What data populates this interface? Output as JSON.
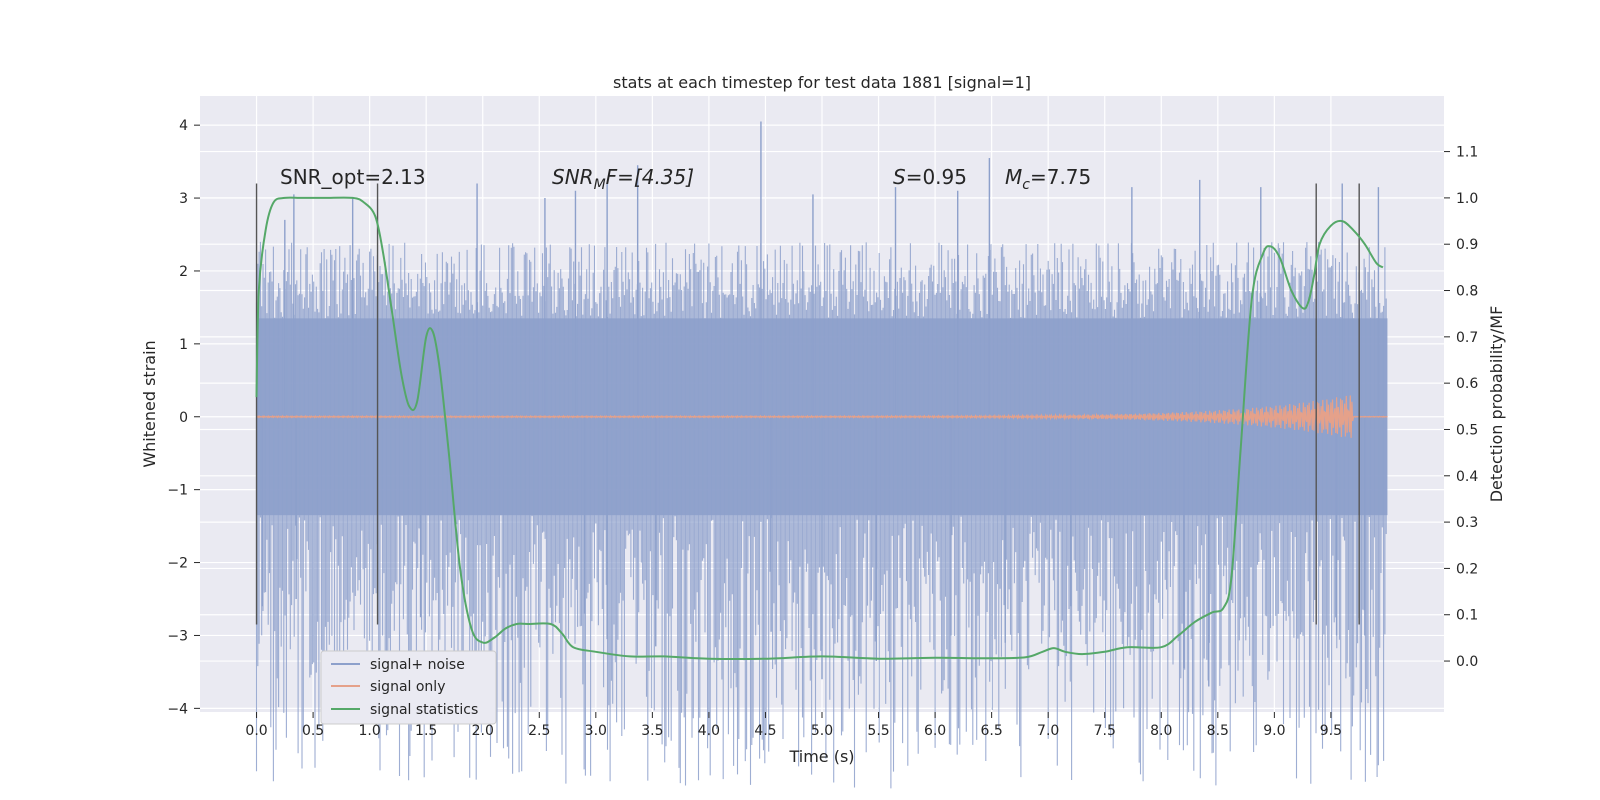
{
  "chart_data": {
    "type": "line",
    "title": "stats at each timestep for test data 1881 [signal=1]",
    "xlabel": "Time (s)",
    "ylabel": "Whitened strain",
    "y2label": "Detection probability/MF",
    "xlim": [
      -0.5,
      10.5
    ],
    "ylim": [
      -4.05,
      4.4
    ],
    "y2lim": [
      -0.11,
      1.22
    ],
    "xticks": [
      0.0,
      0.5,
      1.0,
      1.5,
      2.0,
      2.5,
      3.0,
      3.5,
      4.0,
      4.5,
      5.0,
      5.5,
      6.0,
      6.5,
      7.0,
      7.5,
      8.0,
      8.5,
      9.0,
      9.5
    ],
    "xtick_labels": [
      "0.0",
      "0.5",
      "1.0",
      "1.5",
      "2.0",
      "2.5",
      "3.0",
      "3.5",
      "4.0",
      "4.5",
      "5.0",
      "5.5",
      "6.0",
      "6.5",
      "7.0",
      "7.5",
      "8.0",
      "8.5",
      "9.0",
      "9.5"
    ],
    "yticks": [
      4,
      3,
      2,
      1,
      0,
      -1,
      -2,
      -3,
      -4
    ],
    "ytick_labels": [
      "4",
      "3",
      "2",
      "1",
      "0",
      "−1",
      "−2",
      "−3",
      "−4"
    ],
    "y2ticks": [
      1.1,
      1.0,
      0.9,
      0.8,
      0.7,
      0.6,
      0.5,
      0.4,
      0.3,
      0.2,
      0.1,
      0.0
    ],
    "y2tick_labels": [
      "1.1",
      "1.0",
      "0.9",
      "0.8",
      "0.7",
      "0.6",
      "0.5",
      "0.4",
      "0.3",
      "0.2",
      "0.1",
      "0.0"
    ],
    "grid": true,
    "legend_position": "lower-left",
    "annotations": {
      "snr_opt": "SNR_opt=2.13",
      "snr_mf_main": "SNR",
      "snr_mf_sub": "M",
      "snr_mf_rest": "F=[4.35]",
      "s_italic": "S",
      "s_rest": "=0.95",
      "mc_main": "M",
      "mc_sub": "c",
      "mc_rest": "=7.75"
    },
    "vlines_x": [
      0.0,
      1.07,
      9.37,
      9.75
    ],
    "vlines_yrange": [
      -2.85,
      3.2
    ],
    "series": [
      {
        "name": "signal+ noise",
        "color": "#8da0cb",
        "style": "noise",
        "x_range": [
          0.0,
          10.0
        ],
        "envelope": [
          -2.0,
          2.0
        ],
        "dense_band": [
          -1.35,
          1.35
        ],
        "spikes": [
          [
            0.02,
            1.75
          ],
          [
            0.25,
            2.7
          ],
          [
            0.33,
            3.05
          ],
          [
            0.85,
            3.0
          ],
          [
            1.95,
            3.2
          ],
          [
            2.55,
            3.0
          ],
          [
            2.82,
            3.1
          ],
          [
            3.1,
            3.2
          ],
          [
            3.37,
            3.45
          ],
          [
            4.46,
            4.05
          ],
          [
            4.92,
            3.05
          ],
          [
            5.65,
            3.15
          ],
          [
            6.2,
            3.1
          ],
          [
            6.48,
            3.55
          ],
          [
            7.74,
            3.15
          ],
          [
            8.34,
            3.25
          ],
          [
            8.88,
            3.15
          ],
          [
            9.6,
            3.2
          ],
          [
            9.92,
            3.15
          ],
          [
            0.05,
            -2.6
          ],
          [
            0.35,
            -2.5
          ],
          [
            1.45,
            -2.75
          ],
          [
            2.9,
            -2.7
          ],
          [
            3.1,
            -3.05
          ],
          [
            3.53,
            -3.15
          ],
          [
            4.55,
            -2.95
          ],
          [
            5.0,
            -3.6
          ],
          [
            5.48,
            -3.35
          ],
          [
            6.14,
            -3.0
          ],
          [
            6.62,
            -3.1
          ],
          [
            7.2,
            -2.6
          ],
          [
            8.2,
            -3.45
          ],
          [
            8.42,
            -3.7
          ],
          [
            9.55,
            -3.0
          ],
          [
            9.8,
            -3.0
          ]
        ]
      },
      {
        "name": "signal only",
        "color": "#e5a18a",
        "style": "chirp",
        "x_range": [
          0.0,
          10.0
        ],
        "amplitude_end": 0.3,
        "peak_x": 9.7
      },
      {
        "name": "signal statistics",
        "color": "#55a868",
        "axis": "right",
        "x": [
          0.0,
          0.02,
          0.08,
          0.15,
          0.25,
          0.4,
          0.6,
          0.85,
          0.95,
          1.05,
          1.12,
          1.2,
          1.28,
          1.35,
          1.42,
          1.5,
          1.56,
          1.62,
          1.7,
          1.8,
          1.9,
          2.0,
          2.1,
          2.2,
          2.3,
          2.4,
          2.6,
          2.7,
          2.8,
          3.0,
          3.3,
          3.6,
          4.0,
          4.5,
          5.0,
          5.5,
          6.0,
          6.5,
          6.8,
          6.95,
          7.05,
          7.15,
          7.3,
          7.5,
          7.7,
          8.0,
          8.15,
          8.3,
          8.45,
          8.55,
          8.62,
          8.7,
          8.8,
          8.9,
          8.97,
          9.05,
          9.15,
          9.25,
          9.3,
          9.35,
          9.4,
          9.5,
          9.6,
          9.7,
          9.8,
          9.9,
          9.96
        ],
        "y": [
          0.57,
          0.8,
          0.93,
          0.99,
          1.0,
          1.0,
          1.0,
          1.0,
          0.99,
          0.96,
          0.88,
          0.75,
          0.62,
          0.55,
          0.56,
          0.7,
          0.71,
          0.63,
          0.45,
          0.2,
          0.07,
          0.04,
          0.05,
          0.07,
          0.08,
          0.08,
          0.08,
          0.06,
          0.03,
          0.02,
          0.01,
          0.01,
          0.005,
          0.005,
          0.01,
          0.005,
          0.007,
          0.006,
          0.008,
          0.02,
          0.028,
          0.02,
          0.015,
          0.02,
          0.03,
          0.03,
          0.055,
          0.085,
          0.105,
          0.115,
          0.18,
          0.45,
          0.78,
          0.88,
          0.895,
          0.87,
          0.8,
          0.762,
          0.775,
          0.83,
          0.9,
          0.94,
          0.95,
          0.93,
          0.9,
          0.86,
          0.85
        ]
      }
    ]
  }
}
